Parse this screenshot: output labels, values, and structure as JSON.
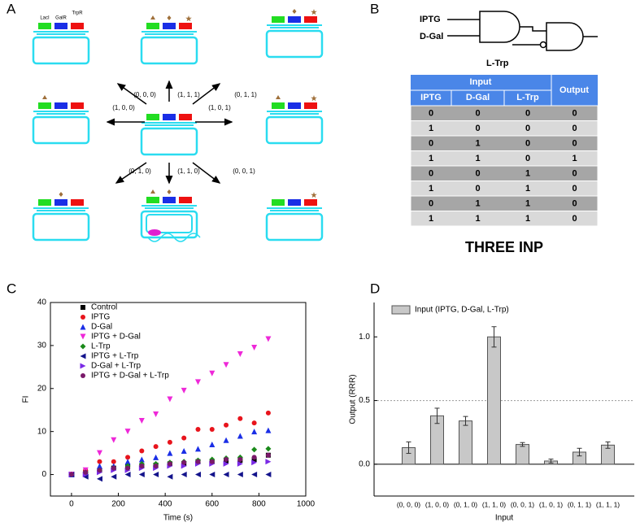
{
  "panel_labels": [
    "A",
    "B",
    "C",
    "D"
  ],
  "diagram": {
    "gene_labels": [
      "LacI",
      "GalR",
      "TrpR"
    ],
    "arrow_labels": [
      "(0, 0, 0)",
      "(1, 1, 1)",
      "(0, 1, 1)",
      "(1, 0, 0)",
      "(1, 0, 1)",
      "(0, 1, 0)",
      "(1, 1, 0)",
      "(0, 0, 1)"
    ]
  },
  "logic_gate": {
    "inputs": [
      "IPTG",
      "D-Gal",
      "L-Trp"
    ]
  },
  "table": {
    "group_header": "Input",
    "output_header": "Output",
    "columns": [
      "IPTG",
      "D-Gal",
      "L-Trp"
    ],
    "rows": [
      [
        0,
        0,
        0,
        0
      ],
      [
        1,
        0,
        0,
        0
      ],
      [
        0,
        1,
        0,
        0
      ],
      [
        1,
        1,
        0,
        1
      ],
      [
        0,
        0,
        1,
        0
      ],
      [
        1,
        0,
        1,
        0
      ],
      [
        0,
        1,
        1,
        0
      ],
      [
        1,
        1,
        1,
        0
      ]
    ]
  },
  "caption": "THREE INP",
  "chart_data": [
    {
      "type": "scatter",
      "xlabel": "Time (s)",
      "ylabel": "FI",
      "x": [
        0,
        60,
        120,
        180,
        240,
        300,
        360,
        420,
        480,
        540,
        600,
        660,
        720,
        780,
        840
      ],
      "xlim": [
        -90,
        1000
      ],
      "xticks": [
        0,
        200,
        400,
        600,
        800,
        1000
      ],
      "ylim": [
        -5,
        40
      ],
      "yticks": [
        0,
        10,
        20,
        30,
        40
      ],
      "legend": "upper left",
      "series": [
        {
          "name": "Control",
          "color": "#000000",
          "marker": "square",
          "values": [
            0,
            0.5,
            1,
            1.5,
            1.8,
            2,
            2.2,
            2.5,
            2.5,
            3,
            3,
            3.2,
            3.3,
            3.5,
            4.5
          ]
        },
        {
          "name": "IPTG",
          "color": "#e8141c",
          "marker": "circle",
          "values": [
            0,
            1,
            3,
            3,
            4,
            5.5,
            6.5,
            7.5,
            8.5,
            10.5,
            10.5,
            11.5,
            13,
            12,
            14.3
          ]
        },
        {
          "name": "D-Gal",
          "color": "#1a2ee6",
          "marker": "triangle-up",
          "values": [
            0,
            0.5,
            2,
            2,
            3,
            3.5,
            4,
            5,
            5.5,
            6,
            7,
            8,
            9,
            10,
            10.3
          ]
        },
        {
          "name": "IPTG + D-Gal",
          "color": "#ee28d8",
          "marker": "triangle-down",
          "values": [
            0,
            1,
            5,
            8,
            10,
            12.5,
            14,
            17.5,
            19.5,
            21.5,
            23.5,
            25.5,
            28,
            29.5,
            31.5
          ]
        },
        {
          "name": "L-Trp",
          "color": "#1a8a1a",
          "marker": "diamond",
          "values": [
            0,
            0.5,
            1,
            1.5,
            2,
            2.5,
            2.5,
            2.8,
            3,
            3.3,
            3.5,
            3.8,
            4,
            5.8,
            6
          ]
        },
        {
          "name": "IPTG + L-Trp",
          "color": "#14148c",
          "marker": "triangle-left",
          "values": [
            0,
            -0.5,
            -1,
            -0.5,
            0,
            0,
            0,
            -0.5,
            0,
            0,
            0,
            0,
            0,
            0,
            0
          ]
        },
        {
          "name": "D-Gal + L-Trp",
          "color": "#7a2ae6",
          "marker": "triangle-right",
          "values": [
            0,
            0,
            0.5,
            1,
            1,
            1.5,
            1.5,
            2,
            2,
            2.5,
            2.5,
            2.5,
            2.5,
            2.8,
            3
          ]
        },
        {
          "name": "IPTG + D-Gal + L-Trp",
          "color": "#7a1a6a",
          "marker": "circle",
          "values": [
            0,
            0.5,
            1,
            1.5,
            1.5,
            2,
            2,
            2.5,
            2.8,
            3,
            3,
            3.5,
            3.5,
            4,
            4.5
          ]
        }
      ]
    },
    {
      "type": "bar",
      "xlabel": "Input",
      "ylabel": "Output (RRR)",
      "categories": [
        "(0, 0, 0)",
        "(1, 0, 0)",
        "(0, 1, 0)",
        "(1, 1, 0)",
        "(0, 0, 1)",
        "(1, 0, 1)",
        "(0, 1, 1)",
        "(1, 1, 1)"
      ],
      "ylim": [
        -0.25,
        1.27
      ],
      "yticks": [
        {
          "value": 0,
          "label": "0.0"
        },
        {
          "value": 0.5,
          "label": "0.5"
        },
        {
          "value": 1,
          "label": "1.0"
        }
      ],
      "reference_line": 0.5,
      "legend": "upper left",
      "series": [
        {
          "name": "Input (IPTG, D-Gal, L-Trp)",
          "color": "#c8c8c8",
          "values": [
            0.13,
            0.38,
            0.34,
            1.0,
            0.155,
            0.025,
            0.095,
            0.15
          ],
          "errors": [
            0.045,
            0.06,
            0.035,
            0.08,
            0.015,
            0.015,
            0.03,
            0.025
          ]
        }
      ]
    }
  ]
}
